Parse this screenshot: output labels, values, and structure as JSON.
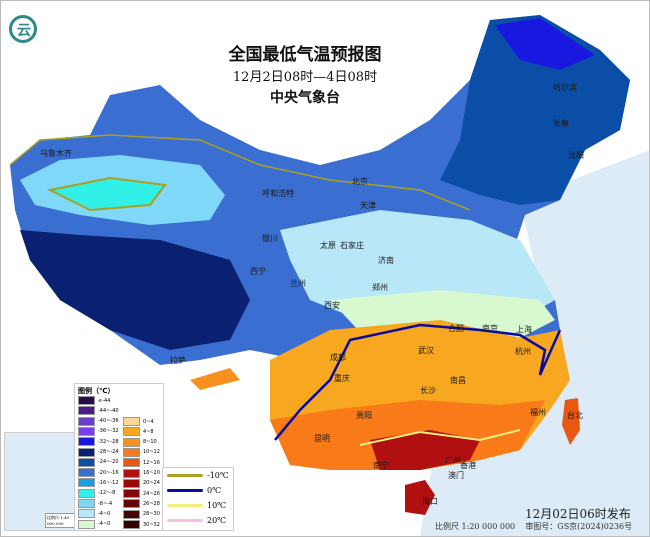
{
  "header": {
    "title": "全国最低气温预报图",
    "period": "12月2日08时—4日08时",
    "agency": "中央气象台"
  },
  "logo": {
    "icon": "cma-logo-icon",
    "color": "#2d8a8a"
  },
  "cities": [
    "乌鲁木齐",
    "哈尔滨",
    "长春",
    "沈阳",
    "呼和浩特",
    "北京",
    "天津",
    "银川",
    "太原",
    "石家庄",
    "西宁",
    "兰州",
    "济南",
    "郑州",
    "西安",
    "合肥",
    "南京",
    "上海",
    "杭州",
    "成都",
    "武汉",
    "拉萨",
    "重庆",
    "长沙",
    "南昌",
    "福州",
    "台北",
    "贵阳",
    "昆明",
    "南宁",
    "广州",
    "香港",
    "澳门",
    "海口"
  ],
  "legend": {
    "title": "图例（℃）",
    "cold": [
      {
        "label": "≤-44",
        "color": "#2a0a4a"
      },
      {
        "label": "-44~-40",
        "color": "#4b1a8a"
      },
      {
        "label": "-40~-36",
        "color": "#6a3fc8"
      },
      {
        "label": "-36~-32",
        "color": "#7a3cf0"
      },
      {
        "label": "-32~-28",
        "color": "#1818e0"
      },
      {
        "label": "-28~-24",
        "color": "#0a2070"
      },
      {
        "label": "-24~-20",
        "color": "#0a4ea8"
      },
      {
        "label": "-20~-16",
        "color": "#3a6ed0"
      },
      {
        "label": "-16~-12",
        "color": "#1aa0e0"
      },
      {
        "label": "-12~-8",
        "color": "#30f0e8"
      },
      {
        "label": "-8~-4",
        "color": "#80d8f8"
      },
      {
        "label": "-4~0",
        "color": "#b8e8f8"
      },
      {
        "label": "-4~0",
        "color": "#d8f8d0"
      }
    ],
    "warm": [
      {
        "label": "0~4",
        "color": "#f8d898"
      },
      {
        "label": "4~8",
        "color": "#f8a820"
      },
      {
        "label": "8~10",
        "color": "#f89020"
      },
      {
        "label": "10~12",
        "color": "#f87a18"
      },
      {
        "label": "12~16",
        "color": "#e85810"
      },
      {
        "label": "16~20",
        "color": "#b01010"
      },
      {
        "label": "20~24",
        "color": "#980a0a"
      },
      {
        "label": "24~26",
        "color": "#800808"
      },
      {
        "label": "26~28",
        "color": "#600606"
      },
      {
        "label": "28~30",
        "color": "#480404"
      },
      {
        "label": "30~32",
        "color": "#300202"
      }
    ],
    "isolines": [
      {
        "label": "-10℃",
        "color": "#a8a020"
      },
      {
        "label": "0℃",
        "color": "#0a0aa0"
      },
      {
        "label": "10℃",
        "color": "#f0f080"
      },
      {
        "label": "20℃",
        "color": "#f8c0e0"
      }
    ]
  },
  "inset": {
    "scale": "比例尺 1:40 000 000",
    "title": "南海诸岛"
  },
  "footer": {
    "issued": "12月02日06时发布",
    "scale": "比例尺 1:20 000 000",
    "review_no": "审图号：GS京(2024)0236号"
  }
}
